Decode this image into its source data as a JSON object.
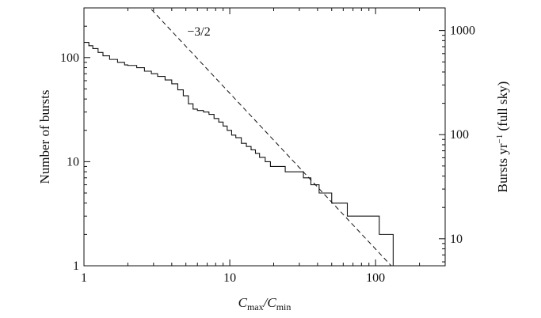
{
  "chart_data": {
    "type": "line",
    "xscale": "log",
    "yscale": "log",
    "xlim": [
      1,
      300
    ],
    "ylim": [
      1,
      300
    ],
    "y2lim": [
      5.5,
      1650
    ],
    "grid": false,
    "xticks": [
      {
        "value": 1,
        "label": "1"
      },
      {
        "value": 10,
        "label": "10"
      },
      {
        "value": 100,
        "label": "100"
      }
    ],
    "yticks": [
      {
        "value": 1,
        "label": "1"
      },
      {
        "value": 10,
        "label": "10"
      },
      {
        "value": 100,
        "label": "100"
      }
    ],
    "y2ticks": [
      {
        "value": 10,
        "label": "10"
      },
      {
        "value": 100,
        "label": "100"
      },
      {
        "value": 1000,
        "label": "1000"
      }
    ],
    "xlabel": {
      "main": "C",
      "sub1": "max",
      "slash": "/C",
      "sub2": "min"
    },
    "ylabel": "Number of bursts",
    "y2label": {
      "before": "Bursts yr",
      "sup": "−1",
      "after": " (full sky)"
    },
    "series": [
      {
        "style": "solid-step",
        "x": [
          1.0,
          1.08,
          1.15,
          1.25,
          1.35,
          1.5,
          1.7,
          1.9,
          2.0,
          2.3,
          2.6,
          2.9,
          3.2,
          3.6,
          4.0,
          4.4,
          4.8,
          5.2,
          5.6,
          6.0,
          6.6,
          7.2,
          7.8,
          8.4,
          9.0,
          9.6,
          10.3,
          11.0,
          12.0,
          13.0,
          14.0,
          15.0,
          16.0,
          17.5,
          19.0,
          20.0,
          24.0,
          32.0,
          36.0,
          40.0,
          41.0,
          50.0,
          61.0,
          64.0,
          100.0,
          106.0,
          120.0,
          131.0,
          132.0
        ],
        "y": [
          140,
          130,
          122,
          112,
          104,
          96,
          90,
          85,
          84,
          80,
          74,
          70,
          66,
          61,
          56,
          49,
          43,
          36,
          32,
          31,
          30,
          28.5,
          26,
          24,
          22,
          20,
          18,
          17,
          15,
          14,
          13,
          12,
          11,
          10,
          9,
          9,
          8,
          7,
          6,
          6,
          5,
          4,
          4,
          3,
          3,
          2,
          2,
          2,
          1
        ]
      },
      {
        "style": "dashed",
        "x": [
          2.9,
          128
        ],
        "y": [
          290,
          1
        ]
      }
    ],
    "annotations": [
      {
        "text": "−3/2",
        "x": 5.1,
        "y": 162
      }
    ]
  }
}
